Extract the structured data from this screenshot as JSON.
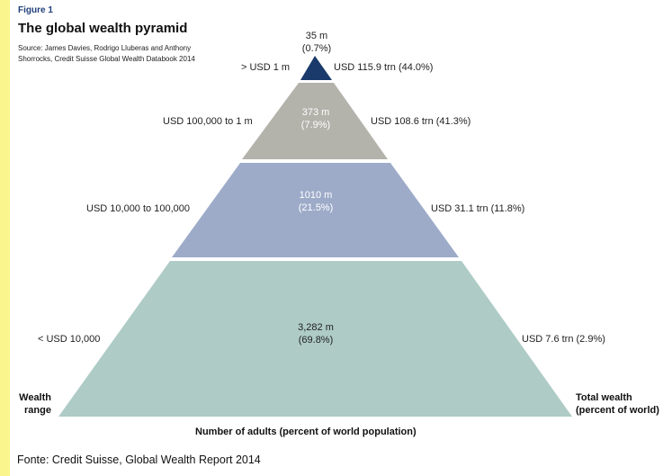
{
  "figure": {
    "label": "Figure 1",
    "title": "The global wealth pyramid",
    "source": "Source: James Davies, Rodrigo Lluberas and Anthony Shorrocks, Credit Suisse Global Wealth Databook 2014"
  },
  "tiers": [
    {
      "wealth_range": "> USD 1 m",
      "adults": "35 m",
      "share_adults": "(0.7%)",
      "total_wealth": "USD 115.9 trn (44.0%)",
      "color": "#1a3a6b"
    },
    {
      "wealth_range": "USD 100,000 to 1 m",
      "adults": "373 m",
      "share_adults": "(7.9%)",
      "total_wealth": "USD 108.6 trn (41.3%)",
      "color": "#b3b2ab"
    },
    {
      "wealth_range": "USD 10,000 to 100,000",
      "adults": "1010 m",
      "share_adults": "(21.5%)",
      "total_wealth": "USD 31.1 trn (11.8%)",
      "color": "#9dabc9"
    },
    {
      "wealth_range": "< USD 10,000",
      "adults": "3,282 m",
      "share_adults": "(69.8%)",
      "total_wealth": "USD 7.6 trn (2.9%)",
      "color": "#aecbc6"
    }
  ],
  "axis": {
    "left_line1": "Wealth",
    "left_line2": "range",
    "right_line1": "Total wealth",
    "right_line2": "(percent of world)",
    "bottom": "Number of adults (percent of world population)"
  },
  "footer": "Fonte: Credit Suisse, Global Wealth Report 2014"
}
